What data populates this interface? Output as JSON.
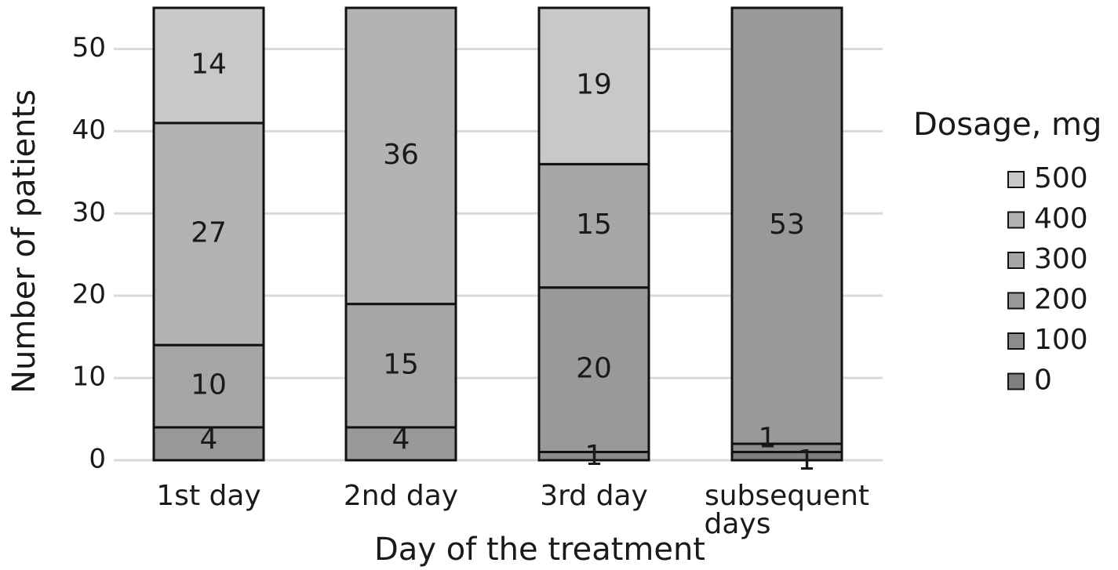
{
  "chart_data": {
    "type": "bar",
    "stacked": true,
    "categories": [
      "1st day",
      "2nd day",
      "3rd day",
      "subsequent days"
    ],
    "category_lines": [
      [
        "1st day"
      ],
      [
        "2nd day"
      ],
      [
        "3rd day"
      ],
      [
        "subsequent",
        "days"
      ]
    ],
    "xlabel": "Day of the treatment",
    "ylabel": "Number of patients",
    "ylim": [
      0,
      55
    ],
    "yticks": [
      0,
      10,
      20,
      30,
      40,
      50
    ],
    "grid": true,
    "legend": {
      "title": "Dosage, mg",
      "position": "right"
    },
    "series": [
      {
        "name": "0",
        "color": "#7f7f7f",
        "values": [
          0,
          0,
          0,
          1
        ]
      },
      {
        "name": "100",
        "color": "#8c8c8c",
        "values": [
          0,
          0,
          1,
          1
        ]
      },
      {
        "name": "200",
        "color": "#999999",
        "values": [
          4,
          4,
          20,
          53
        ]
      },
      {
        "name": "300",
        "color": "#a6a6a6",
        "values": [
          10,
          15,
          15,
          0
        ]
      },
      {
        "name": "400",
        "color": "#b3b3b3",
        "values": [
          27,
          36,
          0,
          0
        ]
      },
      {
        "name": "500",
        "color": "#c8c8c8",
        "values": [
          14,
          0,
          19,
          0
        ]
      }
    ],
    "data_labels": [
      [
        "",
        "",
        "4",
        "10",
        "27",
        "14"
      ],
      [
        "",
        "",
        "4",
        "15",
        "36",
        ""
      ],
      [
        "",
        "1",
        "20",
        "15",
        "",
        "19"
      ],
      [
        "1",
        "1",
        "53",
        "",
        "",
        ""
      ]
    ]
  }
}
